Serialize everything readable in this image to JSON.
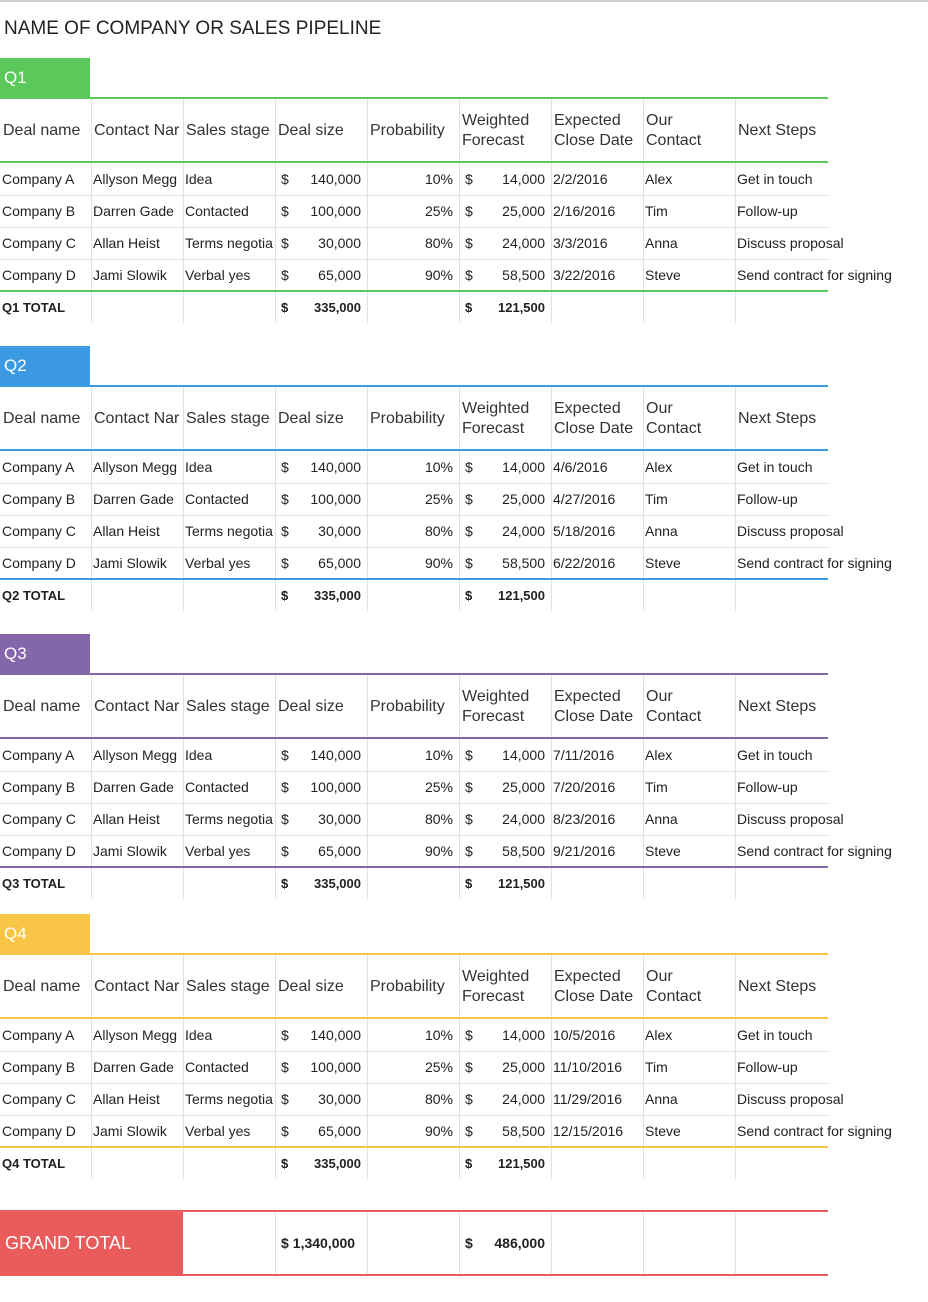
{
  "title": "NAME OF COMPANY OR SALES PIPELINE",
  "currency_symbol": "$",
  "headers": [
    "Deal name",
    "Contact Nar",
    "Sales stage",
    "Deal size",
    "Probability",
    "Weighted Forecast",
    "Expected Close Date",
    "Our Contact",
    "Next Steps"
  ],
  "sections": [
    {
      "label": "Q1",
      "color": "#5cc85c",
      "rows": [
        [
          "Company A",
          "Allyson Megg",
          "Idea",
          "140,000",
          "10%",
          "14,000",
          "2/2/2016",
          "Alex",
          "Get in touch"
        ],
        [
          "Company B",
          "Darren Gade",
          "Contacted",
          "100,000",
          "25%",
          "25,000",
          "2/16/2016",
          "Tim",
          "Follow-up"
        ],
        [
          "Company C",
          "Allan Heist",
          "Terms negotia",
          "30,000",
          "80%",
          "24,000",
          "3/3/2016",
          "Anna",
          "Discuss proposal"
        ],
        [
          "Company D",
          "Jami Slowik",
          "Verbal yes",
          "65,000",
          "90%",
          "58,500",
          "3/22/2016",
          "Steve",
          "Send contract for signing"
        ]
      ],
      "total": {
        "label": "Q1 TOTAL",
        "deal_size": "335,000",
        "weighted": "121,500"
      }
    },
    {
      "label": "Q2",
      "color": "#3b9ae1",
      "rows": [
        [
          "Company A",
          "Allyson Megg",
          "Idea",
          "140,000",
          "10%",
          "14,000",
          "4/6/2016",
          "Alex",
          "Get in touch"
        ],
        [
          "Company B",
          "Darren Gade",
          "Contacted",
          "100,000",
          "25%",
          "25,000",
          "4/27/2016",
          "Tim",
          "Follow-up"
        ],
        [
          "Company C",
          "Allan Heist",
          "Terms negotia",
          "30,000",
          "80%",
          "24,000",
          "5/18/2016",
          "Anna",
          "Discuss proposal"
        ],
        [
          "Company D",
          "Jami Slowik",
          "Verbal yes",
          "65,000",
          "90%",
          "58,500",
          "6/22/2016",
          "Steve",
          "Send contract for signing"
        ]
      ],
      "total": {
        "label": "Q2 TOTAL",
        "deal_size": "335,000",
        "weighted": "121,500"
      }
    },
    {
      "label": "Q3",
      "color": "#8466aa",
      "rows": [
        [
          "Company A",
          "Allyson Megg",
          "Idea",
          "140,000",
          "10%",
          "14,000",
          "7/11/2016",
          "Alex",
          "Get in touch"
        ],
        [
          "Company B",
          "Darren Gade",
          "Contacted",
          "100,000",
          "25%",
          "25,000",
          "7/20/2016",
          "Tim",
          "Follow-up"
        ],
        [
          "Company C",
          "Allan Heist",
          "Terms negotia",
          "30,000",
          "80%",
          "24,000",
          "8/23/2016",
          "Anna",
          "Discuss proposal"
        ],
        [
          "Company D",
          "Jami Slowik",
          "Verbal yes",
          "65,000",
          "90%",
          "58,500",
          "9/21/2016",
          "Steve",
          "Send contract for signing"
        ]
      ],
      "total": {
        "label": "Q3 TOTAL",
        "deal_size": "335,000",
        "weighted": "121,500"
      }
    },
    {
      "label": "Q4",
      "color": "#f9c546",
      "rows": [
        [
          "Company A",
          "Allyson Megg",
          "Idea",
          "140,000",
          "10%",
          "14,000",
          "10/5/2016",
          "Alex",
          "Get in touch"
        ],
        [
          "Company B",
          "Darren Gade",
          "Contacted",
          "100,000",
          "25%",
          "25,000",
          "11/10/2016",
          "Tim",
          "Follow-up"
        ],
        [
          "Company C",
          "Allan Heist",
          "Terms negotia",
          "30,000",
          "80%",
          "24,000",
          "11/29/2016",
          "Anna",
          "Discuss proposal"
        ],
        [
          "Company D",
          "Jami Slowik",
          "Verbal yes",
          "65,000",
          "90%",
          "58,500",
          "12/15/2016",
          "Steve",
          "Send contract for signing"
        ]
      ],
      "total": {
        "label": "Q4 TOTAL",
        "deal_size": "335,000",
        "weighted": "121,500"
      }
    }
  ],
  "grand_total": {
    "label": "GRAND TOTAL",
    "color": "#ea5b5b",
    "deal_size": "1,340,000",
    "weighted": "486,000"
  }
}
